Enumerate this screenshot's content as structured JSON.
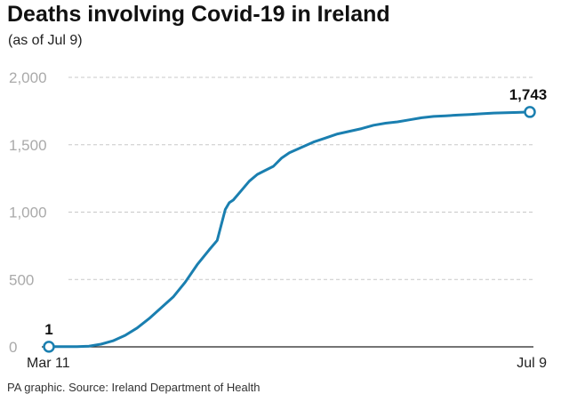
{
  "header": {
    "title": "Deaths involving Covid-19 in Ireland",
    "subtitle": "(as of Jul 9)"
  },
  "footer": {
    "source": "PA graphic. Source: Ireland Department of Health"
  },
  "colors": {
    "line": "#1a7fb0",
    "grid": "#c8c8c8",
    "axis": "#222222"
  },
  "chart_data": {
    "type": "line",
    "title": "Deaths involving Covid-19 in Ireland",
    "subtitle": "(as of Jul 9)",
    "xlabel": "",
    "ylabel": "",
    "ylim": [
      0,
      2000
    ],
    "yticks": [
      0,
      500,
      1000,
      1500,
      2000
    ],
    "ytick_labels": [
      "0",
      "500",
      "1,000",
      "1,500",
      "2,000"
    ],
    "x_tick_labels": [
      "Mar 11",
      "Jul 9"
    ],
    "grid": true,
    "legend": "none",
    "annotations": [
      {
        "date": "2020-03-11",
        "value": 1,
        "label": "1"
      },
      {
        "date": "2020-07-09",
        "value": 1743,
        "label": "1,743"
      }
    ],
    "series": [
      {
        "x": [
          "2020-03-11",
          "2020-03-18",
          "2020-03-21",
          "2020-03-24",
          "2020-03-27",
          "2020-03-30",
          "2020-04-02",
          "2020-04-05",
          "2020-04-08",
          "2020-04-11",
          "2020-04-14",
          "2020-04-17",
          "2020-04-20",
          "2020-04-22",
          "2020-04-24",
          "2020-04-25",
          "2020-04-26",
          "2020-04-28",
          "2020-04-30",
          "2020-05-02",
          "2020-05-04",
          "2020-05-06",
          "2020-05-08",
          "2020-05-10",
          "2020-05-13",
          "2020-05-16",
          "2020-05-19",
          "2020-05-22",
          "2020-05-25",
          "2020-05-28",
          "2020-05-31",
          "2020-06-03",
          "2020-06-06",
          "2020-06-09",
          "2020-06-12",
          "2020-06-15",
          "2020-06-18",
          "2020-06-21",
          "2020-06-24",
          "2020-06-27",
          "2020-06-30",
          "2020-07-03",
          "2020-07-06",
          "2020-07-09"
        ],
        "values": [
          1,
          2,
          5,
          20,
          45,
          85,
          140,
          210,
          290,
          370,
          480,
          610,
          720,
          790,
          1020,
          1070,
          1090,
          1160,
          1230,
          1280,
          1310,
          1340,
          1400,
          1440,
          1480,
          1520,
          1550,
          1580,
          1600,
          1620,
          1645,
          1660,
          1670,
          1685,
          1700,
          1710,
          1715,
          1720,
          1725,
          1730,
          1735,
          1738,
          1740,
          1743
        ]
      }
    ]
  }
}
